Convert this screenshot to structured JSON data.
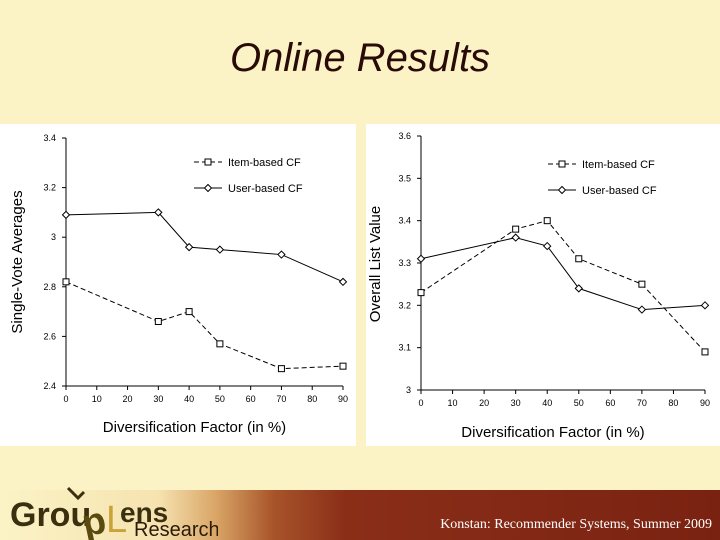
{
  "slide": {
    "title": "Online Results",
    "footer_text": "Konstan: Recommender Systems, Summer 2009",
    "logo": {
      "name": "GroupLens",
      "word": "Research"
    }
  },
  "chart_data": [
    {
      "type": "line",
      "x": [
        0,
        30,
        40,
        50,
        70,
        90
      ],
      "xticks": [
        0,
        10,
        20,
        30,
        40,
        50,
        60,
        70,
        80,
        90
      ],
      "xlim": [
        0,
        90
      ],
      "xlabel": "Diversification Factor (in %)",
      "ylabel": "Single-Vote Averages",
      "yticks": [
        "2.4",
        "2.6",
        "2.8",
        "3",
        "3.2",
        "3.4"
      ],
      "ylim": [
        2.4,
        3.4
      ],
      "legend": "top-right",
      "series": [
        {
          "name": "Item-based CF",
          "style": "dashed",
          "marker": "square",
          "values": [
            2.82,
            2.66,
            2.7,
            2.57,
            2.47,
            2.48
          ]
        },
        {
          "name": "User-based CF",
          "style": "solid",
          "marker": "diamond",
          "values": [
            3.09,
            3.1,
            2.96,
            2.95,
            2.93,
            2.82
          ]
        }
      ]
    },
    {
      "type": "line",
      "x": [
        0,
        30,
        40,
        50,
        70,
        90
      ],
      "xticks": [
        0,
        10,
        20,
        30,
        40,
        50,
        60,
        70,
        80,
        90
      ],
      "xlim": [
        0,
        90
      ],
      "xlabel": "Diversification Factor (in %)",
      "ylabel": "Overall List Value",
      "yticks": [
        "3",
        "3.1",
        "3.2",
        "3.3",
        "3.4",
        "3.5",
        "3.6"
      ],
      "ylim": [
        3.0,
        3.6
      ],
      "legend": "top-right",
      "series": [
        {
          "name": "Item-based CF",
          "style": "dashed",
          "marker": "square",
          "values": [
            3.23,
            3.38,
            3.4,
            3.31,
            3.25,
            3.09
          ]
        },
        {
          "name": "User-based CF",
          "style": "solid",
          "marker": "diamond",
          "values": [
            3.31,
            3.36,
            3.34,
            3.24,
            3.19,
            3.2
          ]
        }
      ]
    }
  ]
}
